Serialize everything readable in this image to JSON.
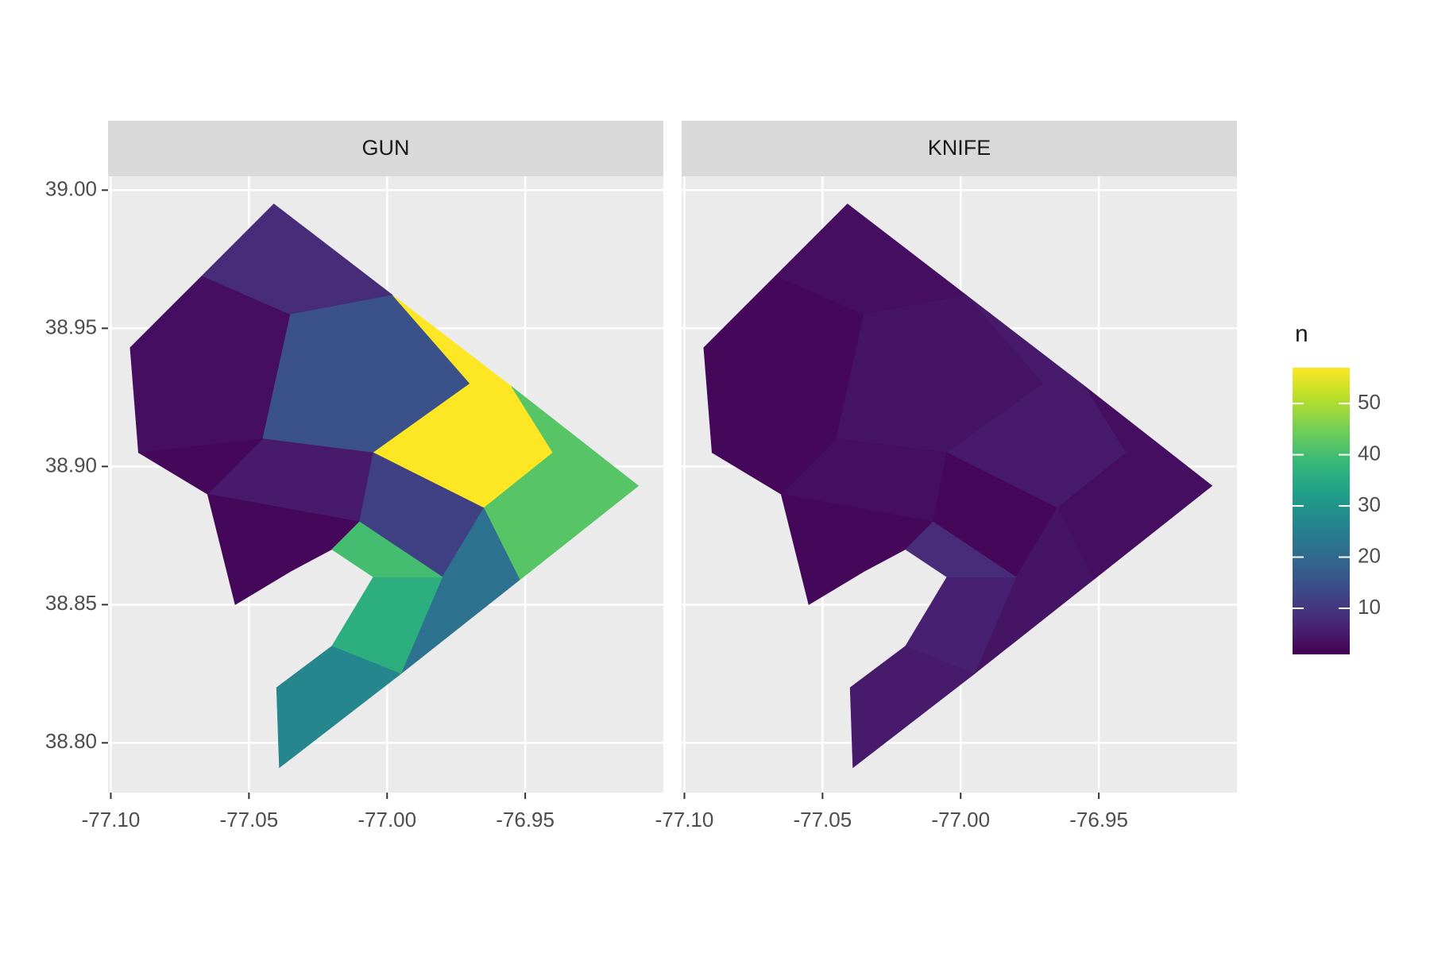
{
  "chart_data": {
    "type": "choropleth",
    "facets": [
      {
        "name": "GUN",
        "values": [
          3,
          8,
          15,
          5,
          2,
          2,
          57,
          42,
          12,
          22,
          36,
          27,
          40
        ]
      },
      {
        "name": "KNIFE",
        "values": [
          2,
          3,
          4,
          3,
          2,
          2,
          5,
          3,
          2,
          4,
          6,
          5,
          8
        ]
      }
    ],
    "regions": [
      [
        [
          -77.093,
          38.943
        ],
        [
          -77.067,
          38.969
        ],
        [
          -77.035,
          38.955
        ],
        [
          -77.045,
          38.91
        ],
        [
          -77.09,
          38.905
        ]
      ],
      [
        [
          -77.067,
          38.969
        ],
        [
          -77.041,
          38.995
        ],
        [
          -76.998,
          38.962
        ],
        [
          -77.035,
          38.955
        ]
      ],
      [
        [
          -77.035,
          38.955
        ],
        [
          -76.998,
          38.962
        ],
        [
          -76.97,
          38.93
        ],
        [
          -77.005,
          38.905
        ],
        [
          -77.045,
          38.91
        ]
      ],
      [
        [
          -77.045,
          38.91
        ],
        [
          -77.005,
          38.905
        ],
        [
          -77.01,
          38.88
        ],
        [
          -77.065,
          38.89
        ]
      ],
      [
        [
          -77.09,
          38.905
        ],
        [
          -77.045,
          38.91
        ],
        [
          -77.065,
          38.89
        ]
      ],
      [
        [
          -77.065,
          38.89
        ],
        [
          -77.01,
          38.88
        ],
        [
          -77.02,
          38.87
        ],
        [
          -77.035,
          38.862
        ],
        [
          -77.055,
          38.85
        ]
      ],
      [
        [
          -76.998,
          38.962
        ],
        [
          -76.955,
          38.929
        ],
        [
          -76.94,
          38.905
        ],
        [
          -76.965,
          38.885
        ],
        [
          -77.005,
          38.905
        ],
        [
          -76.97,
          38.93
        ]
      ],
      [
        [
          -76.94,
          38.905
        ],
        [
          -76.955,
          38.929
        ],
        [
          -76.909,
          38.893
        ],
        [
          -76.952,
          38.859
        ],
        [
          -76.965,
          38.885
        ]
      ],
      [
        [
          -77.01,
          38.88
        ],
        [
          -77.005,
          38.905
        ],
        [
          -76.965,
          38.885
        ],
        [
          -76.98,
          38.86
        ]
      ],
      [
        [
          -76.965,
          38.885
        ],
        [
          -76.952,
          38.859
        ],
        [
          -76.995,
          38.825
        ],
        [
          -76.98,
          38.86
        ]
      ],
      [
        [
          -77.005,
          38.86
        ],
        [
          -76.98,
          38.86
        ],
        [
          -76.995,
          38.825
        ],
        [
          -77.02,
          38.835
        ]
      ],
      [
        [
          -77.02,
          38.835
        ],
        [
          -76.995,
          38.825
        ],
        [
          -77.039,
          38.791
        ],
        [
          -77.04,
          38.82
        ]
      ],
      [
        [
          -77.02,
          38.87
        ],
        [
          -77.01,
          38.88
        ],
        [
          -76.98,
          38.86
        ],
        [
          -77.005,
          38.86
        ]
      ]
    ],
    "xlim": [
      -77.101,
      -76.9
    ],
    "ylim": [
      38.782,
      39.005
    ],
    "xticks": [
      {
        "value": -77.1,
        "label": "-77.10"
      },
      -77.05,
      {
        "value": -77.0,
        "label": "-77.00"
      },
      -76.95
    ],
    "yticks": [
      {
        "value": 38.8,
        "label": "38.80"
      },
      38.85,
      {
        "value": 38.9,
        "label": "38.90"
      },
      38.95,
      {
        "value": 39.0,
        "label": "39.00"
      }
    ],
    "grid": true,
    "legend_title": "n",
    "legend_ticks": [
      10,
      20,
      30,
      40,
      50
    ],
    "fill_limits": [
      1,
      57
    ],
    "colors": [
      "#440154",
      "#482878",
      "#3e4989",
      "#31688e",
      "#26828e",
      "#1f9e89",
      "#35b779",
      "#6ece58",
      "#b5de2b",
      "#fde725"
    ]
  }
}
